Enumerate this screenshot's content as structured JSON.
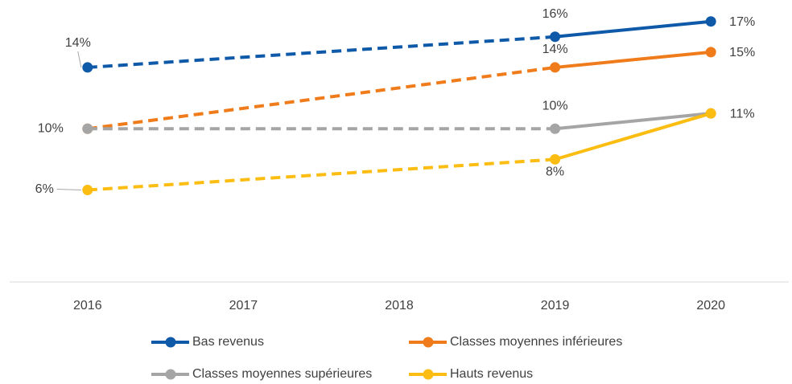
{
  "chart_data": {
    "type": "line",
    "x": [
      2016,
      2019,
      2020
    ],
    "xlim": [
      2015.5,
      2020.5
    ],
    "xticks": [
      2016,
      2017,
      2018,
      2019,
      2020
    ],
    "ylim": [
      0,
      18.4
    ],
    "dashed_segments": [
      0
    ],
    "series": [
      {
        "name": "Bas revenus",
        "color": "#0f5aa8",
        "values": [
          14,
          16,
          17
        ],
        "value_labels": [
          "14%",
          "16%",
          "17%"
        ]
      },
      {
        "name": "Classes moyennes inférieures",
        "color": "#f07b1a",
        "values": [
          10,
          14,
          15
        ],
        "value_labels": [
          null,
          "14%",
          "15%"
        ]
      },
      {
        "name": "Classes moyennes supérieures",
        "color": "#a5a5a5",
        "values": [
          10,
          10,
          11
        ],
        "value_labels": [
          "10%",
          "10%",
          "11%"
        ]
      },
      {
        "name": "Hauts revenus",
        "color": "#fbbd12",
        "values": [
          6,
          8,
          11
        ],
        "value_labels": [
          "6%",
          "8%",
          null
        ]
      }
    ]
  }
}
